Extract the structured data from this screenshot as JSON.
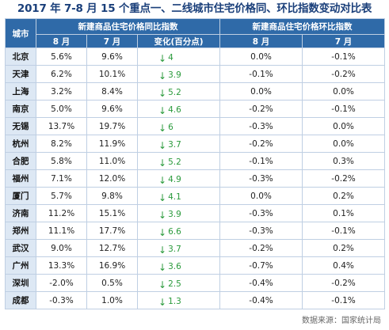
{
  "title": "2017 年 7-8 月 15 个重点一、二线城市住宅价格同、环比指数变动对比表",
  "header": {
    "city": "城市",
    "yoy_group": "新建商品住宅价格同比指数",
    "mom_group": "新建商品住宅价格环比指数",
    "aug": "8 月",
    "jul": "7 月",
    "change": "变化(百分点)"
  },
  "rows": [
    {
      "city": "北京",
      "yoy_aug": "5.6%",
      "yoy_jul": "9.6%",
      "chg": "4",
      "mom_aug": "0.0%",
      "mom_jul": "-0.1%"
    },
    {
      "city": "天津",
      "yoy_aug": "6.2%",
      "yoy_jul": "10.1%",
      "chg": "3.9",
      "mom_aug": "-0.1%",
      "mom_jul": "-0.2%"
    },
    {
      "city": "上海",
      "yoy_aug": "3.2%",
      "yoy_jul": "8.4%",
      "chg": "5.2",
      "mom_aug": "0.0%",
      "mom_jul": "0.0%"
    },
    {
      "city": "南京",
      "yoy_aug": "5.0%",
      "yoy_jul": "9.6%",
      "chg": "4.6",
      "mom_aug": "-0.2%",
      "mom_jul": "-0.1%"
    },
    {
      "city": "无锡",
      "yoy_aug": "13.7%",
      "yoy_jul": "19.7%",
      "chg": "6",
      "mom_aug": "-0.3%",
      "mom_jul": "0.0%"
    },
    {
      "city": "杭州",
      "yoy_aug": "8.2%",
      "yoy_jul": "11.9%",
      "chg": "3.7",
      "mom_aug": "-0.2%",
      "mom_jul": "0.0%"
    },
    {
      "city": "合肥",
      "yoy_aug": "5.8%",
      "yoy_jul": "11.0%",
      "chg": "5.2",
      "mom_aug": "-0.1%",
      "mom_jul": "0.3%"
    },
    {
      "city": "福州",
      "yoy_aug": "7.1%",
      "yoy_jul": "12.0%",
      "chg": "4.9",
      "mom_aug": "-0.3%",
      "mom_jul": "-0.2%"
    },
    {
      "city": "厦门",
      "yoy_aug": "5.7%",
      "yoy_jul": "9.8%",
      "chg": "4.1",
      "mom_aug": "0.0%",
      "mom_jul": "0.2%"
    },
    {
      "city": "济南",
      "yoy_aug": "11.2%",
      "yoy_jul": "15.1%",
      "chg": "3.9",
      "mom_aug": "-0.3%",
      "mom_jul": "0.1%"
    },
    {
      "city": "郑州",
      "yoy_aug": "11.1%",
      "yoy_jul": "17.7%",
      "chg": "6.6",
      "mom_aug": "-0.3%",
      "mom_jul": "-0.1%"
    },
    {
      "city": "武汉",
      "yoy_aug": "9.0%",
      "yoy_jul": "12.7%",
      "chg": "3.7",
      "mom_aug": "-0.2%",
      "mom_jul": "0.2%"
    },
    {
      "city": "广州",
      "yoy_aug": "13.3%",
      "yoy_jul": "16.9%",
      "chg": "3.6",
      "mom_aug": "-0.7%",
      "mom_jul": "0.4%"
    },
    {
      "city": "深圳",
      "yoy_aug": "-2.0%",
      "yoy_jul": "0.5%",
      "chg": "2.5",
      "mom_aug": "-0.4%",
      "mom_jul": "-0.2%"
    },
    {
      "city": "成都",
      "yoy_aug": "-0.3%",
      "yoy_jul": "1.0%",
      "chg": "1.3",
      "mom_aug": "-0.4%",
      "mom_jul": "-0.1%"
    }
  ],
  "colors": {
    "header_bg": "#2f6aa8",
    "city_bg": "#dde8f4",
    "down_arrow": "#2a9a3c",
    "title": "#1a3f7a"
  },
  "source": "数据来源：国家统计局"
}
